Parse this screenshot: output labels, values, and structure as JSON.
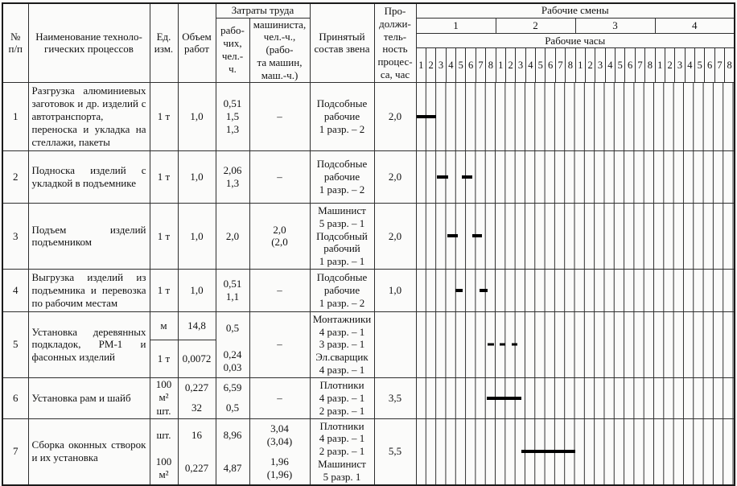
{
  "header": {
    "col_num": "№\nп/п",
    "col_process": "Наименование техноло-\nгических процессов",
    "col_unit": "Ед.\nизм.",
    "col_volume": "Объем\nработ",
    "group_labor": "Затраты труда",
    "col_workers": "рабо-\nчих,\nчел.-\nч.",
    "col_machinist": "машиниста,\nчел.-ч., (рабо-\nта машин,\nмаш.-ч.)",
    "col_crew": "Принятый\nсостав звена",
    "col_duration": "Про-\nдолжи-\nтель-\nность\nпроцес-\nса, час",
    "group_shifts": "Рабочие смены",
    "shifts": [
      "1",
      "2",
      "3",
      "4"
    ],
    "group_hours": "Рабочие часы",
    "hours": [
      "1",
      "2",
      "3",
      "4",
      "5",
      "6",
      "7",
      "8"
    ]
  },
  "rows": [
    {
      "num": "1",
      "process": "Разгрузка алюминиевых заготовок и др. изделий с автотранспорта, переноска и укладка на стеллажи, пакеты",
      "unit": "1 т",
      "volume": "1,0",
      "workers": "0,51\n1,5\n1,3",
      "machinist": "–",
      "crew": "Подсобные\nрабочие\n1 разр. – 2",
      "duration": "2,0",
      "bars": [
        {
          "s": 0.05,
          "e": 2.0
        }
      ]
    },
    {
      "num": "2",
      "process": "Подноска изделий с укладкой в подъемнике",
      "unit": "1 т",
      "volume": "1,0",
      "workers": "2,06\n1,3",
      "machinist": "–",
      "crew": "Подсобные\nрабочие\n1 разр. – 2",
      "duration": "2,0",
      "bars": [
        {
          "s": 2.1,
          "e": 3.2
        },
        {
          "s": 4.55,
          "e": 5.65
        }
      ]
    },
    {
      "num": "3",
      "process": "Подъем изделий подъемником",
      "unit": "1 т",
      "volume": "1,0",
      "workers": "2,0",
      "machinist": "2,0\n(2,0",
      "crew": "Машинист\n5 разр. – 1\nПодсобный\nрабочий\n1 разр. – 1",
      "duration": "2,0",
      "bars": [
        {
          "s": 3.1,
          "e": 4.15
        },
        {
          "s": 5.65,
          "e": 6.6
        }
      ]
    },
    {
      "num": "4",
      "process": "Выгрузка изделий из подъемника и перевозка по рабочим местам",
      "unit": "1 т",
      "volume": "1,0",
      "workers": "0,51\n1,1",
      "machinist": "–",
      "crew": "Подсобные\nрабочие\n1 разр. – 2",
      "duration": "1,0",
      "bars": [
        {
          "s": 3.9,
          "e": 4.7
        },
        {
          "s": 6.35,
          "e": 7.15
        }
      ]
    },
    {
      "num": "5",
      "process": "Установка деревянных подкладок, РМ-1 и фасонных изделий",
      "unit": [
        "м",
        "1 т"
      ],
      "volume": [
        "14,8",
        "0,0072"
      ],
      "workers": [
        "0,5",
        "0,24\n0,03"
      ],
      "machinist": "–",
      "crew": "Монтажники\n4 разр. – 1\n3 разр. – 1\nЭл.сварщик\n4 разр. – 1",
      "duration": "",
      "divider": true,
      "bar_style": "thin",
      "bars": [
        {
          "s": 7.15,
          "e": 7.8
        },
        {
          "s": 8.4,
          "e": 8.95
        },
        {
          "s": 9.6,
          "e": 10.15
        }
      ]
    },
    {
      "num": "6",
      "process": "Установка рам и шайб",
      "unit": [
        "100\nм²",
        "шт."
      ],
      "volume": [
        "0,227",
        "32"
      ],
      "workers": [
        "6,59",
        "0,5"
      ],
      "machinist": "–",
      "crew": "Плотники\n4 разр. – 1\n2 разр. – 1",
      "duration": "3,5",
      "bars": [
        {
          "s": 7.1,
          "e": 10.6
        }
      ]
    },
    {
      "num": "7",
      "process": "Сборка оконных створок и их установка",
      "unit": [
        "шт.",
        "100\nм²"
      ],
      "volume": [
        "16",
        "0,227"
      ],
      "workers": [
        "8,96",
        "4,87"
      ],
      "machinist": [
        "3,04\n(3,04)",
        "1,96\n(1,96)"
      ],
      "crew": "Плотники\n4 разр. – 1\n2 разр. – 1\nМашинист\n5 разр. 1",
      "duration": "5,5",
      "bars": [
        {
          "s": 10.6,
          "e": 16.05
        }
      ]
    }
  ]
}
